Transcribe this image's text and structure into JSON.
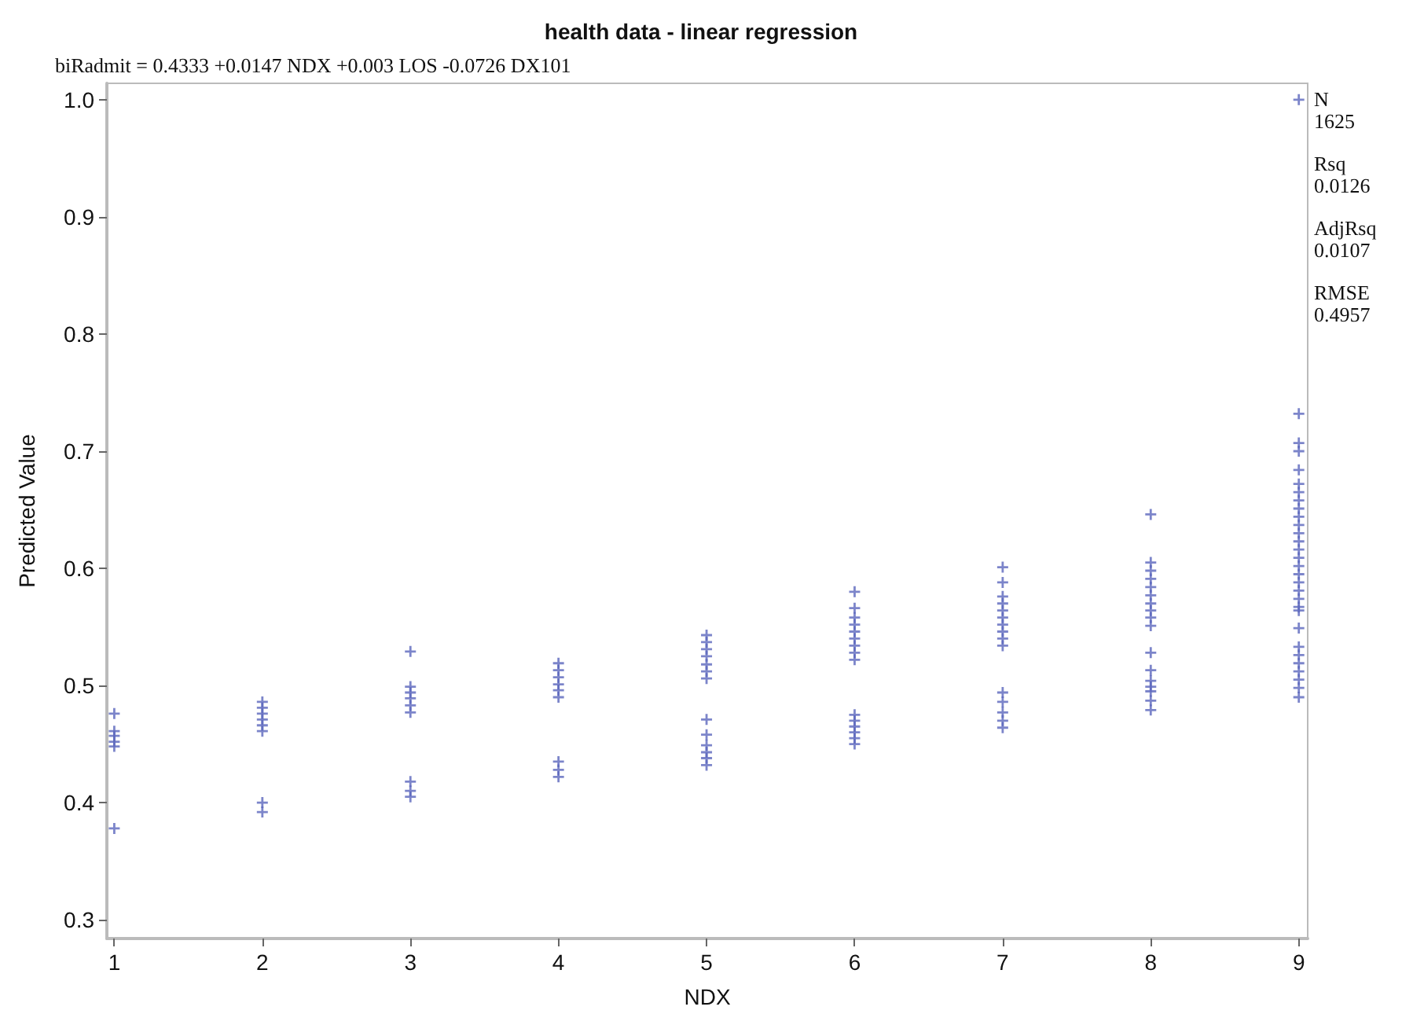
{
  "chart_data": {
    "type": "scatter",
    "title": "health data - linear regression",
    "xlabel": "NDX",
    "ylabel": "Predicted Value",
    "annotations": [
      "biRadmit = 0.4333 +0.0147 NDX +0.003 LOS -0.0726 DX101",
      "N\n1625",
      "Rsq\n0.0126",
      "AdjRsq\n0.0107",
      "RMSE\n0.4957"
    ],
    "marker": "cross",
    "grid": false,
    "xlim": [
      0.95,
      9.06
    ],
    "xticks": [
      1,
      2,
      3,
      4,
      5,
      6,
      7,
      8,
      9
    ],
    "ylim": [
      0.284,
      1.014
    ],
    "yticks": [
      0.3,
      0.4,
      0.5,
      0.6,
      0.7,
      0.8,
      0.9,
      {
        "value": 1,
        "label": "1.0"
      }
    ],
    "series": [
      {
        "color": "#5b67bd",
        "x": [
          1,
          1,
          1,
          1,
          1,
          1,
          2,
          2,
          2,
          2,
          2,
          2,
          2,
          2,
          3,
          3,
          3,
          3,
          3,
          3,
          3,
          3,
          3,
          4,
          4,
          4,
          4,
          4,
          4,
          4,
          4,
          4,
          5,
          5,
          5,
          5,
          5,
          5,
          5,
          5,
          5,
          5,
          5,
          5,
          5,
          6,
          6,
          6,
          6,
          6,
          6,
          6,
          6,
          6,
          6,
          6,
          6,
          6,
          6,
          6,
          7,
          7,
          7,
          7,
          7,
          7,
          7,
          7,
          7,
          7,
          7,
          7,
          7,
          7,
          7,
          8,
          8,
          8,
          8,
          8,
          8,
          8,
          8,
          8,
          8,
          8,
          8,
          8,
          8,
          8,
          8,
          8,
          9,
          9,
          9,
          9,
          9,
          9,
          9,
          9,
          9,
          9,
          9,
          9,
          9,
          9,
          9,
          9,
          9,
          9,
          9,
          9,
          9,
          9,
          9,
          9,
          9,
          9,
          9,
          9,
          9,
          9
        ],
        "values": [
          0.476,
          0.461,
          0.457,
          0.452,
          0.448,
          0.378,
          0.486,
          0.481,
          0.476,
          0.471,
          0.466,
          0.461,
          0.4,
          0.392,
          0.529,
          0.499,
          0.494,
          0.489,
          0.483,
          0.477,
          0.418,
          0.41,
          0.405,
          0.519,
          0.513,
          0.507,
          0.501,
          0.496,
          0.49,
          0.435,
          0.428,
          0.422,
          0.543,
          0.537,
          0.531,
          0.525,
          0.518,
          0.512,
          0.506,
          0.471,
          0.458,
          0.449,
          0.443,
          0.438,
          0.432,
          0.58,
          0.566,
          0.558,
          0.552,
          0.546,
          0.54,
          0.534,
          0.528,
          0.522,
          0.475,
          0.47,
          0.465,
          0.46,
          0.455,
          0.45,
          0.601,
          0.588,
          0.576,
          0.57,
          0.564,
          0.558,
          0.552,
          0.546,
          0.54,
          0.534,
          0.494,
          0.486,
          0.477,
          0.47,
          0.464,
          0.646,
          0.605,
          0.598,
          0.591,
          0.584,
          0.577,
          0.57,
          0.564,
          0.558,
          0.551,
          0.528,
          0.513,
          0.504,
          0.499,
          0.495,
          0.487,
          0.479,
          1.0,
          0.732,
          0.707,
          0.7,
          0.684,
          0.672,
          0.665,
          0.658,
          0.651,
          0.644,
          0.637,
          0.63,
          0.623,
          0.616,
          0.609,
          0.602,
          0.595,
          0.588,
          0.581,
          0.574,
          0.567,
          0.564,
          0.549,
          0.533,
          0.526,
          0.519,
          0.512,
          0.505,
          0.498,
          0.49
        ]
      }
    ]
  }
}
